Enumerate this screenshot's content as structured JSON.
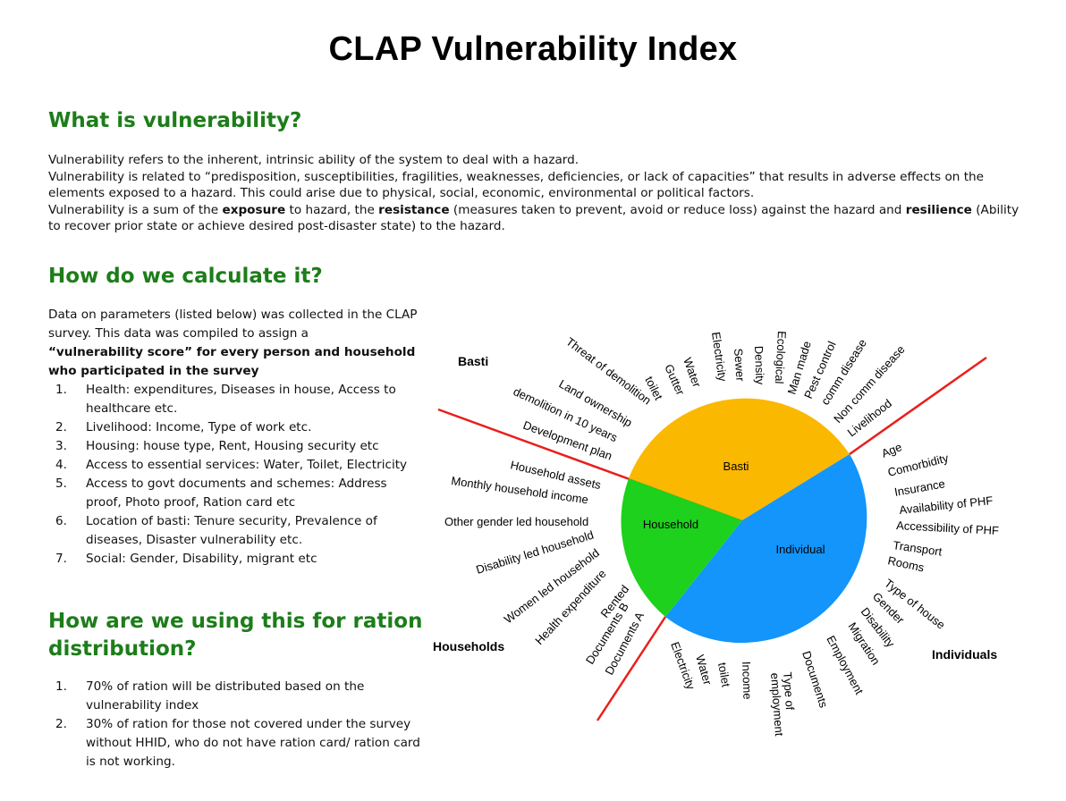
{
  "title": "CLAP Vulnerability Index",
  "section1": {
    "heading": "What is vulnerability?",
    "lines": [
      "Vulnerability refers to the inherent, intrinsic ability of the system to deal with a hazard.",
      "Vulnerability is related to “predisposition, susceptibilities, fragilities, weaknesses, deficiencies, or lack of capacities” that results in adverse effects on the elements exposed to a hazard. This could arise due to physical, social, economic, environmental or political factors."
    ],
    "line3": {
      "p1": "Vulnerability is a sum of the ",
      "b1": "exposure",
      "p2": " to hazard, the ",
      "b2": "resistance",
      "p3": " (measures taken to prevent, avoid or reduce loss) against the hazard and ",
      "b3": "resilience",
      "p4": " (Ability to recover prior state or achieve desired post-disaster state) to the hazard."
    }
  },
  "section2": {
    "heading": "How do we calculate it?",
    "intro": "Data on parameters (listed below) was collected in the CLAP survey. This data was compiled to assign a",
    "intro_bold": "“vulnerability score” for every person and household who participated in the survey",
    "items": [
      {
        "num": "1.",
        "text": "Health: expenditures, Diseases in house, Access to healthcare etc."
      },
      {
        "num": "2.",
        "text": "Livelihood: Income, Type of work etc."
      },
      {
        "num": "3.",
        "text": "Housing: house type, Rent, Housing security etc"
      },
      {
        "num": "4.",
        "text": "Access to essential services: Water, Toilet, Electricity"
      },
      {
        "num": "5.",
        "text": "Access to govt documents and schemes: Address proof, Photo proof, Ration card etc"
      },
      {
        "num": "6.",
        "text": "Location of basti: Tenure security, Prevalence of diseases, Disaster vulnerability etc."
      },
      {
        "num": "7.",
        "text": "Social: Gender, Disability, migrant etc"
      }
    ]
  },
  "section3": {
    "heading": "How are we using this for ration distribution?",
    "items": [
      {
        "num": "1.",
        "text": "70% of ration will be distributed based on the vulnerability index"
      },
      {
        "num": "2.",
        "text": "30% of ration for those not covered under the survey without HHID, who do not have ration card/ ration card is not working."
      }
    ]
  },
  "diagram": {
    "colors": {
      "basti": "#fbb800",
      "household": "#1dd11d",
      "individual": "#1395fb",
      "divider": "#e8201c"
    },
    "segments": {
      "basti": "Basti",
      "household": "Household",
      "individual": "Individual"
    },
    "group_labels": {
      "basti": "Basti",
      "households": "Households",
      "individuals": "Individuals"
    },
    "basti_labels": [
      "Threat of demolition",
      "Land ownership",
      "demolition in 10 years",
      "Development plan",
      "toilet",
      "Gutter",
      "Water",
      "Electricity",
      "Sewer",
      "Density",
      "Ecological",
      "Man made",
      "Pest control",
      "comm disease",
      "Non comm disease",
      "Livelihood"
    ],
    "individual_labels": [
      "Age",
      "Comorbidity",
      "Insurance",
      "Availability of PHF",
      "Accessibility of PHF",
      "Transport",
      "Rooms",
      "Type of house",
      "Gender",
      "Disability",
      "Migration",
      "Employment",
      "Documents",
      "Type of employment",
      "Income",
      "toilet",
      "Water",
      "Electricity"
    ],
    "household_labels": [
      "Household assets",
      "Monthly household income",
      "Other gender led household",
      "Disability led household",
      "Women led household",
      "Health expenditure",
      "Rented",
      "Documents B",
      "Documents A"
    ]
  }
}
